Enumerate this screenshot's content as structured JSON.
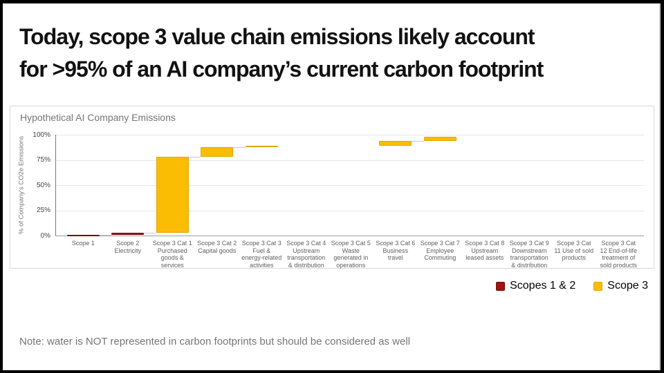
{
  "slide": {
    "title_line1": "Today, scope 3 value chain emissions likely account",
    "title_line2": "for >95% of an AI company’s current carbon footprint",
    "note": "Note: water is NOT represented in carbon footprints but should be considered as well"
  },
  "chart_data": {
    "type": "bar",
    "subtype": "waterfall",
    "title": "Hypothetical AI Company Emissions",
    "ylabel": "% of Company's CO2e Emissions",
    "ylim": [
      0,
      100
    ],
    "tick_values": [
      0,
      25,
      50,
      75,
      100
    ],
    "yticks": [
      "0%",
      "25%",
      "50%",
      "75%",
      "100%"
    ],
    "grid": true,
    "legend_position": "below-right",
    "categories": [
      {
        "label_lines": [
          "Scope 1"
        ],
        "start": 0,
        "end": 1,
        "series": "scopes12"
      },
      {
        "label_lines": [
          "Scope 2",
          "Electricity"
        ],
        "start": 1,
        "end": 3,
        "series": "scopes12"
      },
      {
        "label_lines": [
          "Scope 3 Cat 1",
          "Purchased",
          "goods &",
          "services"
        ],
        "start": 3,
        "end": 78,
        "series": "scope3"
      },
      {
        "label_lines": [
          "Scope 3 Cat 2",
          "Capital goods"
        ],
        "start": 78,
        "end": 87.5,
        "series": "scope3"
      },
      {
        "label_lines": [
          "Scope 3 Cat 3",
          "Fuel &",
          "energy-related",
          "activities"
        ],
        "start": 87.5,
        "end": 89,
        "series": "scope3"
      },
      {
        "label_lines": [
          "Scope 3 Cat 4",
          "Upstream",
          "transportation",
          "& distribution"
        ],
        "start": 89,
        "end": 89,
        "series": "scope3"
      },
      {
        "label_lines": [
          "Scope 3 Cat 5",
          "Waste",
          "generated in",
          "operations"
        ],
        "start": 89,
        "end": 89,
        "series": "scope3"
      },
      {
        "label_lines": [
          "Scope 3 Cat 6",
          "Business",
          "travel"
        ],
        "start": 89,
        "end": 93.5,
        "series": "scope3"
      },
      {
        "label_lines": [
          "Scope 3 Cat 7",
          "Employee",
          "Commuting"
        ],
        "start": 93.5,
        "end": 98,
        "series": "scope3"
      },
      {
        "label_lines": [
          "Scope 3 Cat 8",
          "Upstream",
          "leased assets"
        ],
        "start": 98,
        "end": 98,
        "series": "scope3"
      },
      {
        "label_lines": [
          "Scope 3 Cat 9",
          "Downstream",
          "transportation",
          "& distribution"
        ],
        "start": 98,
        "end": 98,
        "series": "scope3"
      },
      {
        "label_lines": [
          "Scope 3 Cat",
          "11 Use of sold",
          "products"
        ],
        "start": 98,
        "end": 98,
        "series": "scope3"
      },
      {
        "label_lines": [
          "Scope 3 Cat",
          "12 End-of-life",
          "treatment of",
          "sold products"
        ],
        "start": 98,
        "end": 98,
        "series": "scope3"
      }
    ],
    "colors": {
      "scopes12": "#A2130C",
      "scopes12_border": "#6E0E08",
      "scope3": "#FBBC04",
      "scope3_border": "#E3A600"
    },
    "legend": [
      {
        "label": "Scopes 1 & 2",
        "series": "scopes12"
      },
      {
        "label": "Scope 3",
        "series": "scope3"
      }
    ]
  }
}
